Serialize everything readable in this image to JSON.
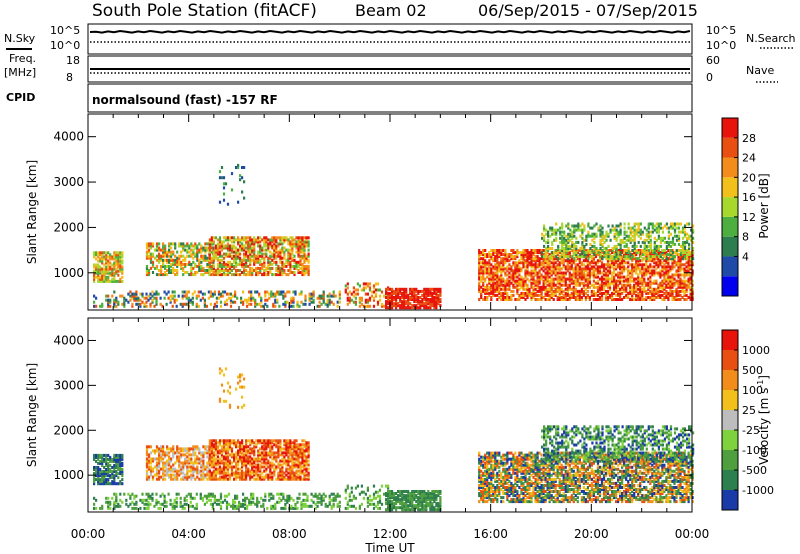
{
  "header": {
    "station": "South Pole Station (fitACF)",
    "beam": "Beam 02",
    "date_range": "06/Sep/2015 - 07/Sep/2015"
  },
  "summary_panels": {
    "nsky_label": "N.Sky",
    "nsky_ticks": [
      "10^5",
      "10^0"
    ],
    "nsearch_label": "N.Search",
    "nsearch_ticks": [
      "10^5",
      "10^0"
    ],
    "freq_label": "Freq.",
    "freq_unit": "[MHz]",
    "freq_ticks": [
      "18",
      "8"
    ],
    "nave_label": "Nave",
    "nave_ticks": [
      "60",
      "0"
    ],
    "cpid_label": "CPID",
    "cpid_text": "normalsound (fast) -157 RF"
  },
  "chart_data": [
    {
      "type": "heatmap",
      "panel": "power",
      "ylabel": "Slant Range [km]",
      "xlabel": "Time UT",
      "x_ticks": [
        "00:00",
        "04:00",
        "08:00",
        "12:00",
        "16:00",
        "20:00",
        "00:00"
      ],
      "y_ticks": [
        1000,
        2000,
        3000,
        4000
      ],
      "ylim": [
        180,
        4500
      ],
      "colorbar_label": "Power [dB]",
      "colorbar_ticks": [
        "28",
        "24",
        "20",
        "16",
        "12",
        "8",
        "4"
      ],
      "colors": [
        "#0000ee",
        "#1f4aa8",
        "#2e7d4f",
        "#4caf3f",
        "#a6d82e",
        "#f2c01a",
        "#f28c1a",
        "#e84f10",
        "#e8140c"
      ]
    },
    {
      "type": "heatmap",
      "panel": "velocity",
      "ylabel": "Slant Range [km]",
      "xlabel": "Time UT",
      "x_ticks": [
        "00:00",
        "04:00",
        "08:00",
        "12:00",
        "16:00",
        "20:00",
        "00:00"
      ],
      "y_ticks": [
        1000,
        2000,
        3000,
        4000
      ],
      "ylim": [
        180,
        4500
      ],
      "colorbar_label": "Velocity [m s",
      "colorbar_label_sup": "-1",
      "colorbar_label_close": "]",
      "colorbar_ticks": [
        "1000",
        "500",
        "100",
        "25",
        "-25",
        "-100",
        "-500",
        "-1000"
      ],
      "colors": [
        "#1a3aa8",
        "#2e7f4e",
        "#4f9f3f",
        "#7fd23e",
        "#bdbdbd",
        "#f2c01a",
        "#f28c1a",
        "#e84f10",
        "#e8140c"
      ]
    }
  ]
}
